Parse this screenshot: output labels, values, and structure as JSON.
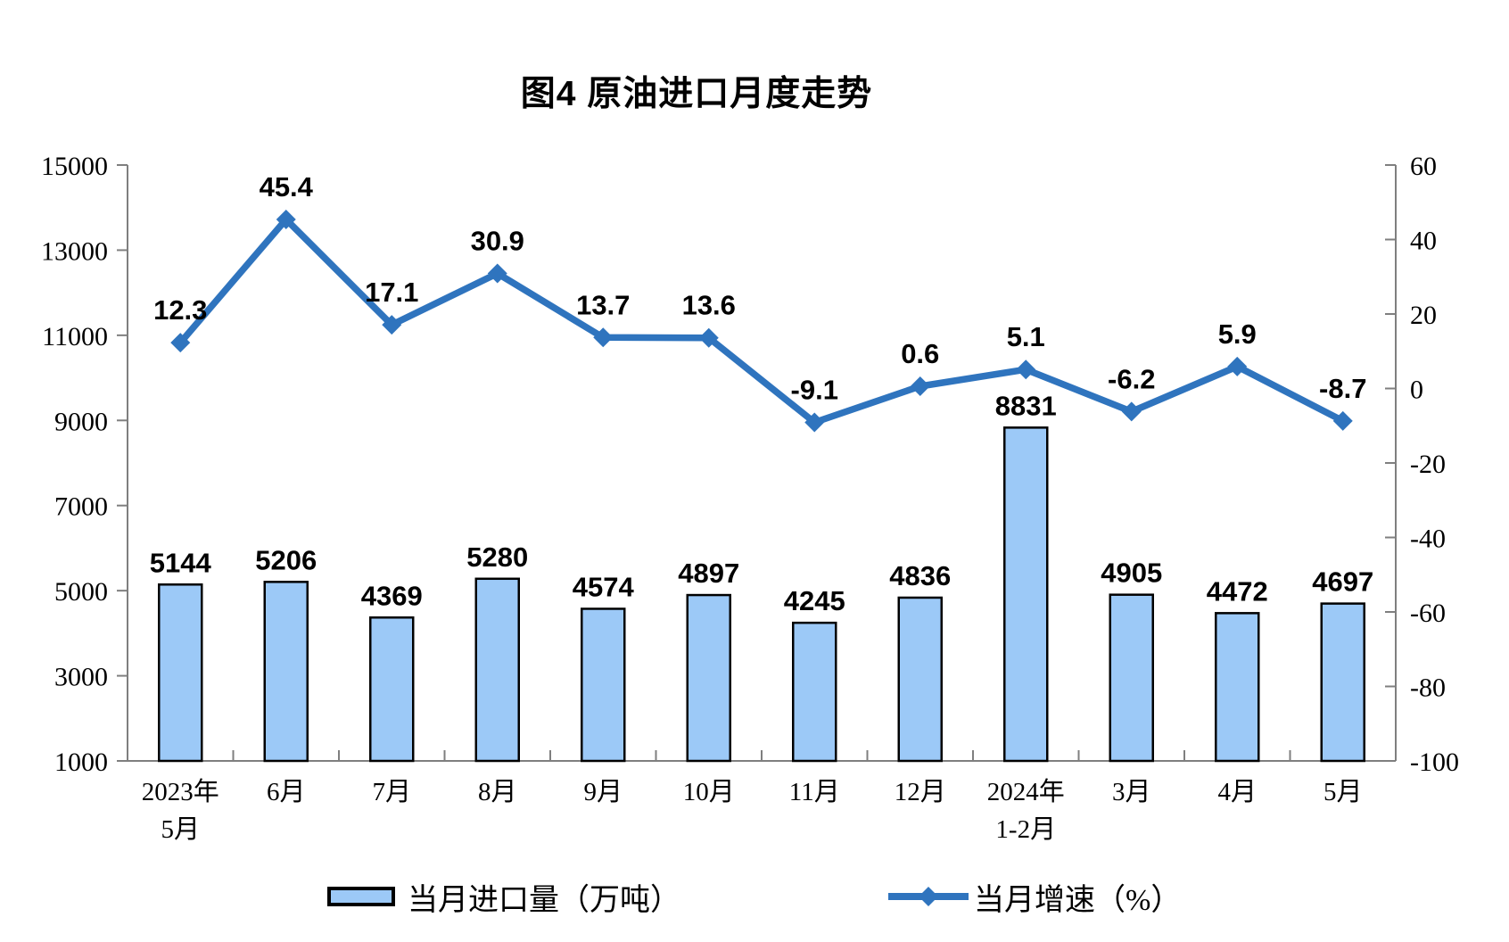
{
  "title": "图4 原油进口月度走势",
  "colors": {
    "bar_fill": "#9CC9F7",
    "bar_border": "#000000",
    "line": "#2F74BE",
    "axis": "#7F7F7F",
    "label": "#000000",
    "background": "#FFFFFF"
  },
  "legend": {
    "position": "bottom",
    "items": [
      {
        "label": "当月进口量（万吨）",
        "marker": "bar"
      },
      {
        "label": "当月增速（%）",
        "marker": "line-diamond"
      }
    ]
  },
  "chart_data": {
    "type": "combo-bar-line",
    "title": "图4 原油进口月度走势",
    "categories": [
      [
        "2023年",
        "5月"
      ],
      [
        "6月"
      ],
      [
        "7月"
      ],
      [
        "8月"
      ],
      [
        "9月"
      ],
      [
        "10月"
      ],
      [
        "11月"
      ],
      [
        "12月"
      ],
      [
        "2024年",
        "1-2月"
      ],
      [
        "3月"
      ],
      [
        "4月"
      ],
      [
        "5月"
      ]
    ],
    "series": [
      {
        "name": "当月进口量（万吨）",
        "type": "bar",
        "axis": "left",
        "values": [
          5144,
          5206,
          4369,
          5280,
          4574,
          4897,
          4245,
          4836,
          8831,
          4905,
          4472,
          4697
        ]
      },
      {
        "name": "当月增速（%）",
        "type": "line",
        "axis": "right",
        "values": [
          12.3,
          45.4,
          17.1,
          30.9,
          13.7,
          13.6,
          -9.1,
          0.6,
          5.1,
          -6.2,
          5.9,
          -8.7
        ]
      }
    ],
    "left_axis": {
      "min": 1000,
      "max": 15000,
      "step": 2000,
      "ticks": [
        1000,
        3000,
        5000,
        7000,
        9000,
        11000,
        13000,
        15000
      ]
    },
    "right_axis": {
      "min": -100,
      "max": 60,
      "step": 20,
      "ticks": [
        -100,
        -80,
        -60,
        -40,
        -20,
        0,
        20,
        40,
        60
      ]
    },
    "grid": false,
    "data_labels": true,
    "legend_position": "bottom"
  }
}
